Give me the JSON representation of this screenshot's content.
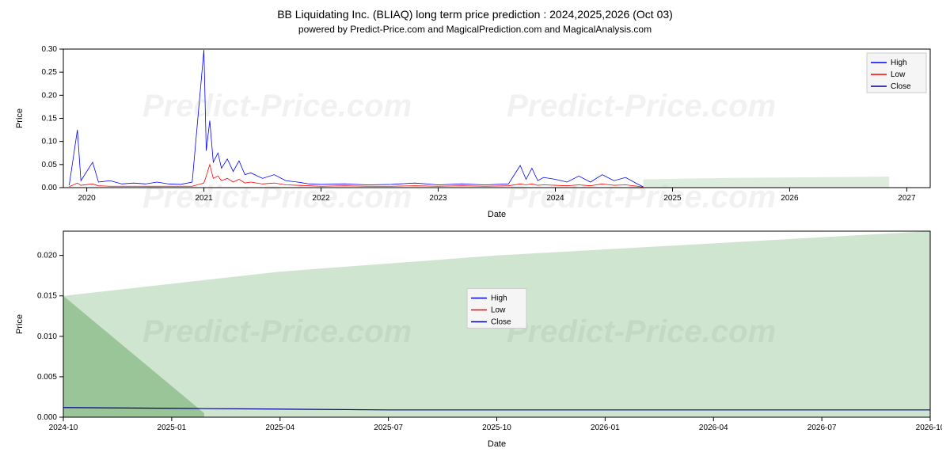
{
  "title": "BB Liquidating Inc. (BLIAQ) long term price prediction : 2024,2025,2026 (Oct 03)",
  "subtitle": "powered by Predict-Price.com and MagicalPrediction.com and MagicalAnalysis.com",
  "watermark": "Predict-Price.com",
  "chart1": {
    "type": "line",
    "xlabel": "Date",
    "ylabel": "Price",
    "xlim": [
      2019.8,
      2027.2
    ],
    "ylim": [
      0,
      0.3
    ],
    "xticks": [
      2020,
      2021,
      2022,
      2023,
      2024,
      2025,
      2026,
      2027
    ],
    "yticks": [
      0.0,
      0.05,
      0.1,
      0.15,
      0.2,
      0.25,
      0.3
    ],
    "background": "#ffffff",
    "border_color": "#000000",
    "legend": {
      "items": [
        "High",
        "Low",
        "Close"
      ],
      "colors": [
        "#0000ff",
        "#ff0000",
        "#00008b"
      ],
      "position": "top-right"
    },
    "prediction_fill": "#c8e0c8",
    "prediction_fill_opacity": 0.6,
    "series": {
      "high_color": "#0000ff",
      "low_color": "#ff0000",
      "close_color": "#00008b",
      "line_width": 0.8
    },
    "data_points": {
      "comment": "approximate visual data - spiky volatile series",
      "high": [
        [
          2019.85,
          0.005
        ],
        [
          2019.92,
          0.125
        ],
        [
          2019.95,
          0.015
        ],
        [
          2020.05,
          0.055
        ],
        [
          2020.1,
          0.012
        ],
        [
          2020.2,
          0.015
        ],
        [
          2020.3,
          0.008
        ],
        [
          2020.4,
          0.01
        ],
        [
          2020.5,
          0.008
        ],
        [
          2020.6,
          0.012
        ],
        [
          2020.7,
          0.008
        ],
        [
          2020.8,
          0.007
        ],
        [
          2020.9,
          0.012
        ],
        [
          2021.0,
          0.298
        ],
        [
          2021.02,
          0.08
        ],
        [
          2021.05,
          0.145
        ],
        [
          2021.08,
          0.055
        ],
        [
          2021.12,
          0.075
        ],
        [
          2021.15,
          0.042
        ],
        [
          2021.2,
          0.062
        ],
        [
          2021.25,
          0.035
        ],
        [
          2021.3,
          0.058
        ],
        [
          2021.35,
          0.028
        ],
        [
          2021.4,
          0.032
        ],
        [
          2021.5,
          0.02
        ],
        [
          2021.6,
          0.028
        ],
        [
          2021.7,
          0.015
        ],
        [
          2021.8,
          0.012
        ],
        [
          2021.9,
          0.008
        ],
        [
          2022.0,
          0.007
        ],
        [
          2022.2,
          0.008
        ],
        [
          2022.4,
          0.006
        ],
        [
          2022.6,
          0.007
        ],
        [
          2022.8,
          0.01
        ],
        [
          2023.0,
          0.006
        ],
        [
          2023.2,
          0.008
        ],
        [
          2023.4,
          0.006
        ],
        [
          2023.6,
          0.008
        ],
        [
          2023.7,
          0.048
        ],
        [
          2023.75,
          0.018
        ],
        [
          2023.8,
          0.042
        ],
        [
          2023.85,
          0.015
        ],
        [
          2023.9,
          0.022
        ],
        [
          2024.0,
          0.018
        ],
        [
          2024.1,
          0.012
        ],
        [
          2024.2,
          0.025
        ],
        [
          2024.3,
          0.012
        ],
        [
          2024.4,
          0.028
        ],
        [
          2024.5,
          0.015
        ],
        [
          2024.6,
          0.022
        ],
        [
          2024.7,
          0.008
        ],
        [
          2024.75,
          0.002
        ]
      ],
      "low": [
        [
          2019.85,
          0.002
        ],
        [
          2019.92,
          0.01
        ],
        [
          2019.95,
          0.005
        ],
        [
          2020.05,
          0.008
        ],
        [
          2020.1,
          0.004
        ],
        [
          2020.2,
          0.003
        ],
        [
          2020.3,
          0.003
        ],
        [
          2020.4,
          0.003
        ],
        [
          2020.5,
          0.003
        ],
        [
          2020.6,
          0.003
        ],
        [
          2020.7,
          0.003
        ],
        [
          2020.8,
          0.003
        ],
        [
          2020.9,
          0.003
        ],
        [
          2021.0,
          0.01
        ],
        [
          2021.02,
          0.025
        ],
        [
          2021.05,
          0.05
        ],
        [
          2021.08,
          0.02
        ],
        [
          2021.12,
          0.025
        ],
        [
          2021.15,
          0.015
        ],
        [
          2021.2,
          0.02
        ],
        [
          2021.25,
          0.012
        ],
        [
          2021.3,
          0.018
        ],
        [
          2021.35,
          0.01
        ],
        [
          2021.4,
          0.012
        ],
        [
          2021.5,
          0.008
        ],
        [
          2021.6,
          0.01
        ],
        [
          2021.7,
          0.006
        ],
        [
          2021.8,
          0.005
        ],
        [
          2021.9,
          0.004
        ],
        [
          2022.0,
          0.003
        ],
        [
          2022.2,
          0.004
        ],
        [
          2022.4,
          0.003
        ],
        [
          2022.6,
          0.003
        ],
        [
          2022.8,
          0.004
        ],
        [
          2023.0,
          0.003
        ],
        [
          2023.2,
          0.004
        ],
        [
          2023.4,
          0.003
        ],
        [
          2023.6,
          0.004
        ],
        [
          2023.7,
          0.008
        ],
        [
          2023.75,
          0.006
        ],
        [
          2023.8,
          0.008
        ],
        [
          2023.85,
          0.005
        ],
        [
          2023.9,
          0.006
        ],
        [
          2024.0,
          0.005
        ],
        [
          2024.1,
          0.004
        ],
        [
          2024.2,
          0.006
        ],
        [
          2024.3,
          0.004
        ],
        [
          2024.4,
          0.008
        ],
        [
          2024.5,
          0.005
        ],
        [
          2024.6,
          0.006
        ],
        [
          2024.7,
          0.003
        ],
        [
          2024.75,
          0.001
        ]
      ],
      "prediction_region": [
        [
          2024.75,
          0.001,
          0.018
        ],
        [
          2025.5,
          0.001,
          0.021
        ],
        [
          2026.5,
          0.001,
          0.023
        ],
        [
          2026.85,
          0.001,
          0.024
        ]
      ]
    }
  },
  "chart2": {
    "type": "area-line",
    "xlabel": "Date",
    "ylabel": "Price",
    "xlim_labels": [
      "2024-10",
      "2025-01",
      "2025-04",
      "2025-07",
      "2025-10",
      "2026-01",
      "2026-04",
      "2026-07",
      "2026-10"
    ],
    "xlim_numeric": [
      0,
      8
    ],
    "ylim": [
      0.0,
      0.023
    ],
    "yticks": [
      0.0,
      0.005,
      0.01,
      0.015,
      0.02
    ],
    "background": "#ffffff",
    "border_color": "#000000",
    "legend": {
      "items": [
        "High",
        "Low",
        "Close"
      ],
      "colors": [
        "#0000ff",
        "#ff0000",
        "#00008b"
      ],
      "position": "center"
    },
    "fill_dark": "#8fbf8f",
    "fill_light": "#c8e0c8",
    "fill_opacity": 0.85,
    "line_color": "#00008b",
    "line_width": 1.2,
    "dark_region": [
      [
        0,
        0.015
      ],
      [
        1.3,
        0.0005
      ]
    ],
    "light_region": [
      [
        0,
        0.015
      ],
      [
        2,
        0.018
      ],
      [
        4,
        0.02
      ],
      [
        6,
        0.0215
      ],
      [
        8,
        0.023
      ]
    ],
    "close_line": [
      [
        0,
        0.0012
      ],
      [
        1,
        0.0011
      ],
      [
        2,
        0.001
      ],
      [
        3,
        0.0009
      ],
      [
        4,
        0.0009
      ],
      [
        5,
        0.0009
      ],
      [
        6,
        0.0009
      ],
      [
        7,
        0.0009
      ],
      [
        8,
        0.0009
      ]
    ]
  }
}
